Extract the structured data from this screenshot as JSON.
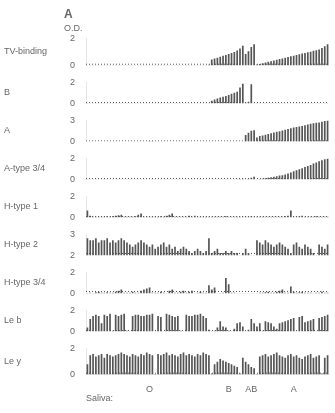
{
  "chart_data": [
    {
      "type": "bar",
      "title": "A",
      "annotations": [
        "O.D."
      ],
      "ylabel": "TV-binding",
      "color": "#555555",
      "ylim": [
        0,
        2
      ],
      "yticks": [
        0,
        2
      ],
      "reference_line": 0.1,
      "grid": false,
      "tick_labels": "y",
      "values": [
        0.03,
        0.03,
        0.03,
        0.03,
        0.03,
        0.03,
        0.03,
        0.03,
        0.03,
        0.03,
        0.03,
        0.03,
        0.03,
        0.03,
        0.03,
        0.03,
        0.03,
        0.03,
        0.03,
        0.03,
        0.03,
        0.03,
        0.03,
        0.03,
        0.03,
        0.03,
        0.03,
        0.03,
        0.03,
        0.03,
        0.03,
        0.03,
        0.03,
        0.03,
        0.03,
        0.03,
        0.03,
        0.03,
        0.03,
        0.03,
        0.03,
        0.03,
        0.03,
        0.07,
        0.45,
        0.52,
        0.58,
        0.65,
        0.72,
        0.78,
        0.85,
        0.92,
        1.0,
        1.1,
        1.25,
        1.45,
        0.85,
        1.05,
        1.35,
        1.55,
        0.08,
        0.12,
        0.18,
        0.22,
        0.28,
        0.32,
        0.38,
        0.42,
        0.48,
        0.52,
        0.58,
        0.62,
        0.68,
        0.72,
        0.78,
        0.82,
        0.88,
        0.92,
        0.98,
        1.02,
        1.08,
        1.12,
        1.18,
        1.28,
        1.42,
        1.55
      ]
    },
    {
      "type": "bar",
      "ylabel": "B",
      "color": "#555555",
      "ylim": [
        0,
        2
      ],
      "yticks": [
        0,
        2
      ],
      "reference_line": 0.1,
      "grid": false,
      "tick_labels": "y",
      "values": [
        0.03,
        0.03,
        0.03,
        0.03,
        0.03,
        0.03,
        0.03,
        0.03,
        0.03,
        0.03,
        0.03,
        0.03,
        0.03,
        0.03,
        0.03,
        0.03,
        0.03,
        0.03,
        0.03,
        0.03,
        0.03,
        0.03,
        0.03,
        0.03,
        0.03,
        0.03,
        0.03,
        0.03,
        0.03,
        0.03,
        0.03,
        0.03,
        0.03,
        0.03,
        0.03,
        0.03,
        0.03,
        0.03,
        0.03,
        0.03,
        0.03,
        0.03,
        0.03,
        0.03,
        0.28,
        0.38,
        0.48,
        0.58,
        0.65,
        0.72,
        0.82,
        0.92,
        1.02,
        1.12,
        1.52,
        1.88,
        0.08,
        0.18,
        1.82,
        0.03,
        0.03,
        0.03,
        0.03,
        0.03,
        0.03,
        0.03,
        0.03,
        0.03,
        0.03,
        0.03,
        0.03,
        0.03,
        0.03,
        0.03,
        0.03,
        0.03,
        0.03,
        0.03,
        0.03,
        0.03,
        0.03,
        0.03,
        0.03,
        0.03,
        0.03,
        0.03
      ]
    },
    {
      "type": "bar",
      "ylabel": "A",
      "color": "#555555",
      "ylim": [
        0,
        3
      ],
      "yticks": [
        0,
        3
      ],
      "reference_line": 0.1,
      "grid": false,
      "tick_labels": "y",
      "values": [
        0.03,
        0.03,
        0.03,
        0.03,
        0.03,
        0.03,
        0.03,
        0.03,
        0.03,
        0.03,
        0.03,
        0.03,
        0.03,
        0.03,
        0.03,
        0.03,
        0.03,
        0.03,
        0.03,
        0.03,
        0.03,
        0.03,
        0.08,
        0.1,
        0.03,
        0.03,
        0.03,
        0.03,
        0.03,
        0.03,
        0.03,
        0.03,
        0.03,
        0.03,
        0.03,
        0.03,
        0.03,
        0.03,
        0.03,
        0.03,
        0.03,
        0.03,
        0.03,
        0.03,
        0.03,
        0.03,
        0.03,
        0.03,
        0.03,
        0.03,
        0.03,
        0.03,
        0.03,
        0.03,
        0.03,
        0.03,
        0.95,
        1.25,
        1.52,
        1.62,
        0.58,
        0.78,
        0.88,
        0.98,
        1.08,
        1.18,
        1.28,
        1.38,
        1.48,
        1.58,
        1.68,
        1.78,
        1.88,
        1.98,
        2.05,
        2.12,
        2.22,
        2.32,
        2.42,
        2.52,
        2.58,
        2.65,
        2.72,
        2.82,
        2.92,
        3.0
      ]
    },
    {
      "type": "bar",
      "ylabel": "A-type 3/4",
      "color": "#555555",
      "ylim": [
        0,
        2
      ],
      "yticks": [
        0,
        2
      ],
      "reference_line": 0.1,
      "grid": false,
      "tick_labels": "y",
      "values": [
        0.03,
        0.03,
        0.03,
        0.03,
        0.03,
        0.03,
        0.03,
        0.03,
        0.03,
        0.03,
        0.03,
        0.03,
        0.03,
        0.03,
        0.03,
        0.03,
        0.03,
        0.03,
        0.03,
        0.03,
        0.03,
        0.03,
        0.03,
        0.03,
        0.03,
        0.03,
        0.03,
        0.03,
        0.03,
        0.03,
        0.03,
        0.03,
        0.03,
        0.03,
        0.03,
        0.03,
        0.03,
        0.03,
        0.03,
        0.03,
        0.03,
        0.03,
        0.03,
        0.03,
        0.03,
        0.03,
        0.03,
        0.03,
        0.03,
        0.03,
        0.03,
        0.03,
        0.03,
        0.03,
        0.05,
        0.08,
        0.03,
        0.08,
        0.18,
        0.28,
        0.03,
        0.05,
        0.08,
        0.12,
        0.18,
        0.22,
        0.28,
        0.32,
        0.38,
        0.42,
        0.48,
        0.58,
        0.68,
        0.78,
        0.88,
        0.98,
        1.08,
        1.18,
        1.28,
        1.38,
        1.52,
        1.62,
        1.72,
        1.82,
        1.92,
        2.0
      ]
    },
    {
      "type": "bar",
      "ylabel": "H-type 1",
      "color": "#555555",
      "ylim": [
        0,
        2
      ],
      "yticks": [
        0,
        2
      ],
      "reference_line": 0.1,
      "grid": false,
      "tick_labels": "y",
      "values": [
        0.68,
        0.18,
        0.08,
        0.08,
        0.08,
        0.08,
        0.08,
        0.12,
        0.08,
        0.12,
        0.18,
        0.22,
        0.28,
        0.08,
        0.08,
        0.08,
        0.08,
        0.12,
        0.28,
        0.38,
        0.08,
        0.08,
        0.08,
        0.08,
        0.08,
        0.08,
        0.12,
        0.08,
        0.18,
        0.28,
        0.38,
        0.08,
        0.08,
        0.08,
        0.08,
        0.08,
        0.18,
        0.08,
        0.18,
        0.08,
        0.08,
        0.08,
        0.08,
        0.08,
        0.08,
        0.08,
        0.08,
        0.08,
        0.08,
        0.12,
        0.08,
        0.08,
        0.08,
        0.08,
        0.08,
        0.08,
        0.08,
        0.08,
        0.12,
        0.08,
        0.08,
        0.08,
        0.08,
        0.08,
        0.08,
        0.08,
        0.08,
        0.08,
        0.08,
        0.08,
        0.12,
        0.18,
        0.68,
        0.08,
        0.08,
        0.12,
        0.18,
        0.08,
        0.08,
        0.08,
        0.08,
        0.12,
        0.08,
        0.08,
        0.08,
        0.08
      ]
    },
    {
      "type": "bar",
      "ylabel": "H-type 2",
      "color": "#555555",
      "ylim": [
        2,
        3
      ],
      "yticks": [
        2,
        3
      ],
      "reference_line": 2.1,
      "grid": false,
      "tick_labels": "y",
      "values": [
        2.82,
        2.72,
        2.72,
        2.82,
        2.62,
        2.72,
        2.72,
        2.82,
        2.62,
        2.72,
        2.62,
        2.72,
        2.82,
        2.72,
        2.62,
        2.52,
        2.42,
        2.52,
        2.62,
        2.72,
        2.62,
        2.52,
        2.42,
        2.52,
        2.32,
        2.42,
        2.52,
        2.62,
        2.42,
        2.52,
        2.32,
        2.42,
        2.22,
        2.32,
        2.42,
        2.32,
        2.22,
        2.12,
        2.22,
        2.32,
        2.22,
        2.12,
        2.22,
        2.82,
        2.12,
        2.22,
        2.32,
        2.12,
        2.12,
        2.22,
        2.12,
        2.22,
        2.12,
        2.12,
        2.02,
        2.12,
        2.32,
        2.12,
        2.02,
        2.02,
        2.72,
        2.62,
        2.52,
        2.72,
        2.62,
        2.52,
        2.42,
        2.52,
        2.62,
        2.52,
        2.42,
        2.32,
        2.12,
        2.52,
        2.62,
        2.42,
        2.32,
        2.52,
        2.42,
        2.32,
        2.12,
        2.02,
        2.52,
        2.42,
        2.32,
        2.52
      ]
    },
    {
      "type": "bar",
      "ylabel": "H-type 3/4",
      "color": "#555555",
      "ylim": [
        0,
        2
      ],
      "yticks": [
        0,
        2
      ],
      "reference_line": 0.2,
      "grid": false,
      "tick_labels": "y",
      "values": [
        0.03,
        0.08,
        0.03,
        0.12,
        0.18,
        0.08,
        0.08,
        0.12,
        0.08,
        0.08,
        0.18,
        0.28,
        0.38,
        0.08,
        0.08,
        0.08,
        0.18,
        0.08,
        0.08,
        0.28,
        0.38,
        0.48,
        0.58,
        0.08,
        0.08,
        0.08,
        0.18,
        0.08,
        0.03,
        0.28,
        0.38,
        0.08,
        0.08,
        0.18,
        0.28,
        0.08,
        0.18,
        0.28,
        0.03,
        0.08,
        0.18,
        0.08,
        0.08,
        0.78,
        0.38,
        0.58,
        0.03,
        0.03,
        0.08,
        1.48,
        0.88,
        0.08,
        0.08,
        0.03,
        0.03,
        0.03,
        0.03,
        0.03,
        0.03,
        0.03,
        0.03,
        0.08,
        0.08,
        0.12,
        0.18,
        0.08,
        0.08,
        0.18,
        0.28,
        0.38,
        0.08,
        0.08,
        0.68,
        0.18,
        0.08,
        0.12,
        0.18,
        0.08,
        0.08,
        0.08,
        0.03,
        0.08,
        0.08,
        0.18,
        0.08,
        0.08
      ]
    },
    {
      "type": "bar",
      "ylabel": "Le b",
      "color": "#555555",
      "ylim": [
        0,
        2
      ],
      "yticks": [
        0,
        2
      ],
      "reference_line": 0.1,
      "grid": false,
      "tick_labels": "y",
      "values": [
        0.38,
        1.18,
        1.48,
        1.58,
        1.48,
        0.78,
        1.58,
        1.48,
        1.68,
        0.08,
        1.58,
        1.48,
        1.58,
        1.68,
        0.08,
        0.03,
        1.48,
        1.58,
        1.58,
        1.48,
        1.48,
        1.58,
        1.58,
        1.68,
        0.03,
        1.48,
        1.38,
        0.03,
        1.68,
        1.58,
        1.48,
        1.38,
        1.48,
        0.08,
        0.03,
        1.58,
        1.48,
        1.48,
        1.58,
        1.58,
        1.68,
        1.48,
        1.28,
        0.18,
        0.03,
        0.08,
        0.38,
        0.98,
        0.48,
        0.38,
        0.08,
        0.03,
        0.28,
        0.78,
        0.88,
        0.48,
        0.03,
        0.18,
        1.18,
        0.78,
        0.48,
        0.78,
        0.08,
        0.98,
        0.88,
        0.78,
        0.48,
        0.28,
        0.78,
        0.88,
        0.98,
        1.08,
        1.18,
        1.28,
        0.03,
        1.38,
        1.48,
        0.88,
        0.98,
        1.08,
        1.18,
        0.03,
        1.28,
        1.38,
        1.48,
        1.58
      ]
    },
    {
      "type": "bar",
      "ylabel": "Le y",
      "xlabel": "Saliva:",
      "color": "#555555",
      "ylim": [
        0,
        2
      ],
      "yticks": [
        0,
        2
      ],
      "reference_line": 0.1,
      "grid": false,
      "categories": [
        null,
        null,
        null,
        null,
        null,
        null,
        null,
        null,
        null,
        null,
        null,
        null,
        null,
        null,
        null,
        null,
        null,
        null,
        null,
        null,
        null,
        null,
        "O",
        null,
        null,
        null,
        null,
        null,
        null,
        null,
        null,
        null,
        null,
        null,
        null,
        null,
        null,
        null,
        null,
        null,
        null,
        null,
        null,
        null,
        null,
        null,
        null,
        null,
        null,
        null,
        "B",
        null,
        null,
        null,
        null,
        null,
        null,
        null,
        "AB",
        null,
        null,
        null,
        null,
        null,
        null,
        null,
        null,
        null,
        null,
        null,
        null,
        null,
        null,
        "A",
        null,
        null,
        null,
        null,
        null,
        null,
        null,
        null,
        null,
        null,
        null,
        null
      ],
      "values": [
        0.78,
        1.48,
        1.58,
        1.38,
        1.48,
        1.58,
        1.28,
        1.58,
        1.48,
        1.38,
        1.48,
        1.58,
        1.68,
        1.58,
        1.48,
        1.38,
        1.58,
        1.48,
        1.38,
        1.58,
        1.48,
        1.68,
        1.58,
        1.48,
        0.03,
        1.58,
        1.48,
        1.58,
        1.68,
        1.48,
        1.58,
        1.48,
        1.38,
        1.58,
        1.68,
        1.48,
        1.58,
        1.48,
        1.38,
        1.58,
        1.48,
        1.68,
        1.58,
        1.48,
        0.08,
        0.78,
        0.98,
        1.18,
        1.08,
        0.98,
        0.88,
        0.78,
        0.68,
        0.58,
        0.08,
        1.28,
        0.98,
        0.78,
        0.58,
        0.48,
        0.03,
        1.38,
        1.48,
        1.58,
        1.38,
        1.48,
        1.58,
        1.68,
        1.48,
        1.38,
        1.28,
        1.48,
        1.58,
        1.38,
        1.48,
        1.28,
        1.18,
        1.38,
        1.48,
        1.58,
        1.28,
        1.38,
        1.48,
        0.08,
        1.28,
        1.48
      ]
    }
  ]
}
